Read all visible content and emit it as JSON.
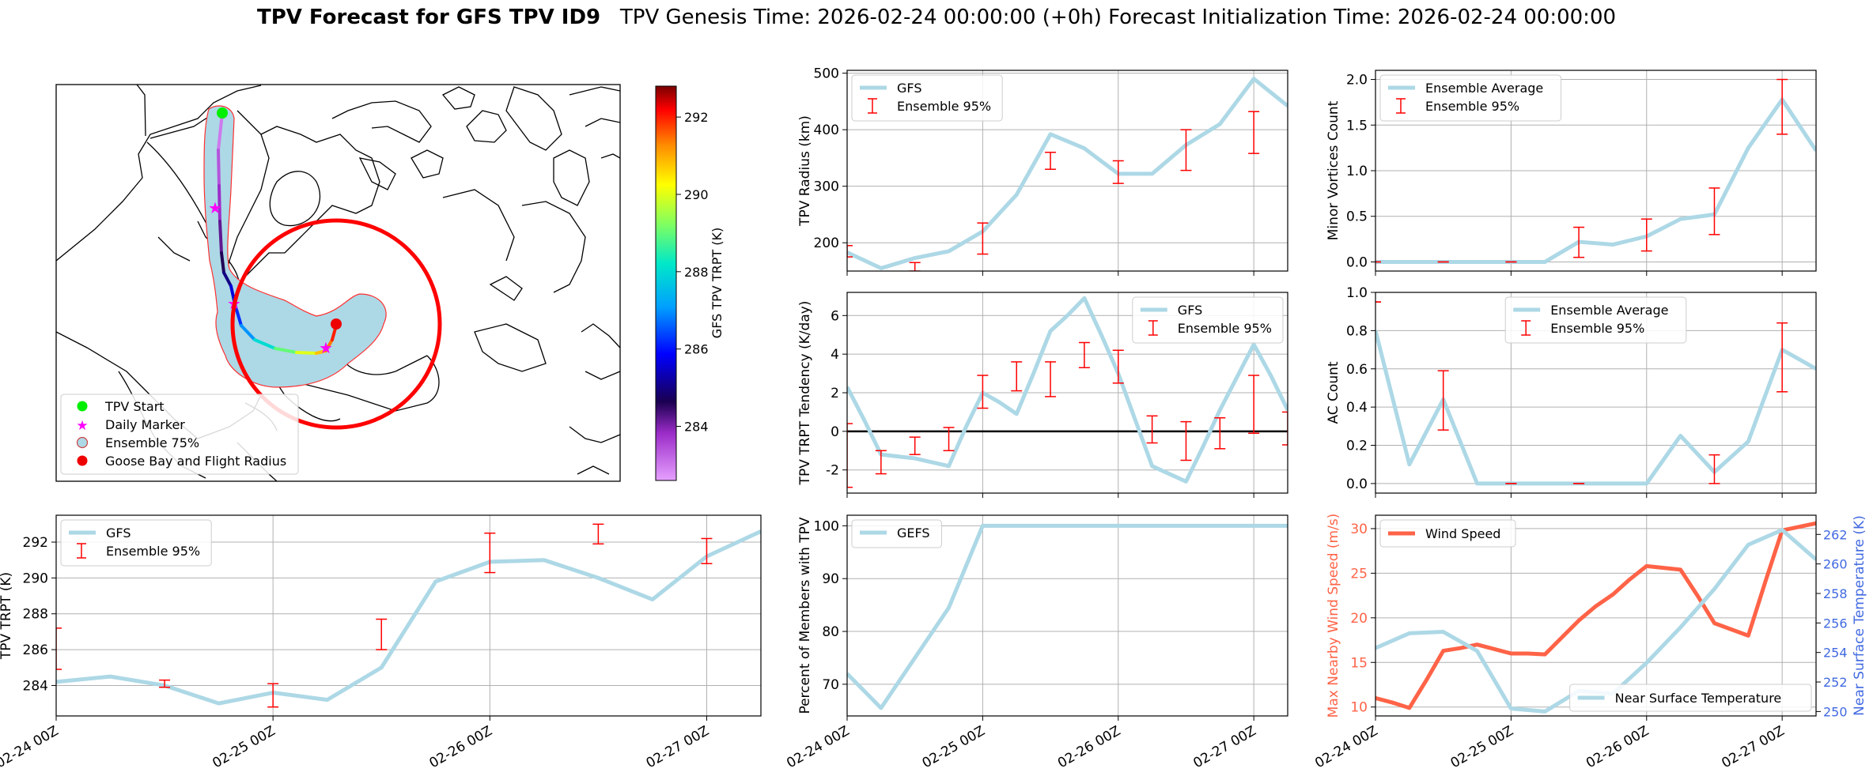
{
  "suptitle": {
    "bold": "TPV Forecast for GFS TPV ID9",
    "rest": "TPV Genesis Time: 2026-02-24 00:00:00 (+0h)   Forecast Initialization Time: 2026-02-24 00:00:00"
  },
  "colors": {
    "light_blue": "#add8e6",
    "error_red": "#ff0000",
    "wind": "#ff6347",
    "temp_axis": "#4169e1",
    "land": "#ffffff",
    "coast": "#000000"
  },
  "map": {
    "legend": [
      {
        "label": "TPV Start",
        "marker": "circle",
        "color": "#00ee00"
      },
      {
        "label": "Daily Marker",
        "marker": "star",
        "color": "#ff00ff"
      },
      {
        "label": "Ensemble 75%",
        "marker": "circle",
        "color": "#add8e6"
      },
      {
        "label": "Goose Bay and Flight Radius",
        "marker": "circle",
        "color": "#ff0000"
      }
    ],
    "colorbar": {
      "label": "GFS TPV TRPT (K)",
      "ticks": [
        284,
        286,
        288,
        290,
        292
      ],
      "vmin": 282.6,
      "vmax": 292.8
    },
    "track_trpt": [
      283.0,
      283.4,
      283.8,
      284.2,
      284.6,
      285.0,
      285.6,
      286.2,
      287.0,
      288.0,
      289.0,
      290.0,
      290.8,
      291.4,
      292.0,
      292.4
    ]
  },
  "time_axis": {
    "tick_labels": [
      "02-24 00Z",
      "02-25 00Z",
      "02-26 00Z",
      "02-27 00Z"
    ],
    "tick_positions": [
      0,
      24,
      48,
      72
    ],
    "xlim": [
      0,
      78
    ]
  },
  "chart_data": [
    {
      "id": "radius",
      "type": "line",
      "ylabel": "TPV Radius (km)",
      "ylim": [
        150,
        505
      ],
      "yticks": [
        200,
        300,
        400,
        500
      ],
      "series": [
        {
          "name": "GFS",
          "x": [
            0,
            6,
            12,
            18,
            24,
            30,
            36,
            42,
            48,
            54,
            60,
            66,
            72,
            78
          ],
          "values": [
            183,
            155,
            173,
            185,
            220,
            285,
            392,
            367,
            322,
            322,
            373,
            410,
            490,
            442
          ]
        },
        {
          "name": "Ensemble 95%",
          "type": "errorbar",
          "x": [
            0,
            12,
            24,
            36,
            48,
            60,
            72
          ],
          "low": [
            175,
            150,
            180,
            330,
            305,
            328,
            358
          ],
          "high": [
            195,
            165,
            235,
            360,
            345,
            400,
            432
          ]
        }
      ],
      "legend": [
        "GFS",
        "Ensemble 95%"
      ]
    },
    {
      "id": "minor",
      "type": "line",
      "ylabel": "Minor Vortices Count",
      "ylim": [
        -0.1,
        2.1
      ],
      "yticks": [
        0.0,
        0.5,
        1.0,
        1.5,
        2.0
      ],
      "series": [
        {
          "name": "Ensemble Average",
          "x": [
            0,
            6,
            12,
            18,
            24,
            30,
            36,
            42,
            48,
            54,
            60,
            66,
            72,
            78
          ],
          "values": [
            0,
            0,
            0,
            0,
            0,
            0,
            0.22,
            0.19,
            0.28,
            0.47,
            0.52,
            1.25,
            1.78,
            1.22
          ]
        },
        {
          "name": "Ensemble 95%",
          "type": "errorbar",
          "x": [
            0,
            12,
            24,
            36,
            48,
            60,
            72
          ],
          "low": [
            0,
            0,
            0,
            0.05,
            0.12,
            0.3,
            1.4
          ],
          "high": [
            0,
            0,
            0,
            0.38,
            0.47,
            0.81,
            2.0
          ]
        }
      ],
      "legend": [
        "Ensemble Average",
        "Ensemble 95%"
      ]
    },
    {
      "id": "tendency",
      "type": "line",
      "ylabel": "TPV TRPT Tendency (K/day)",
      "ylim": [
        -3.2,
        7.2
      ],
      "yticks": [
        -2,
        0,
        2,
        4,
        6
      ],
      "zero_line": true,
      "series": [
        {
          "name": "GFS",
          "x": [
            0,
            3,
            6,
            9,
            12,
            15,
            18,
            21,
            24,
            27,
            30,
            33,
            36,
            39,
            42,
            45,
            48,
            51,
            54,
            57,
            60,
            63,
            66,
            69,
            72,
            75,
            78
          ],
          "values": [
            2.3,
            0.6,
            -1.2,
            -1.3,
            -1.4,
            -1.6,
            -1.8,
            0.2,
            2.0,
            1.5,
            0.9,
            3.0,
            5.2,
            6.0,
            6.9,
            5.0,
            3.0,
            0.6,
            -1.8,
            -2.2,
            -2.6,
            -0.8,
            1.1,
            2.8,
            4.5,
            2.9,
            1.1
          ]
        },
        {
          "name": "Ensemble 95%",
          "type": "errorbar",
          "x": [
            0,
            6,
            12,
            18,
            24,
            30,
            36,
            42,
            48,
            54,
            60,
            66,
            72,
            78
          ],
          "low": [
            -2.9,
            -2.2,
            -1.2,
            -1.0,
            1.2,
            2.1,
            1.8,
            3.3,
            2.5,
            -0.6,
            -1.5,
            -0.9,
            -0.1,
            -0.7
          ],
          "high": [
            0.4,
            -1.0,
            -0.3,
            0.2,
            2.9,
            3.6,
            3.6,
            4.6,
            4.2,
            0.8,
            0.5,
            0.7,
            2.9,
            1.0
          ]
        }
      ],
      "legend": [
        "GFS",
        "Ensemble 95%"
      ]
    },
    {
      "id": "ac",
      "type": "line",
      "ylabel": "AC Count",
      "ylim": [
        -0.05,
        1.0
      ],
      "yticks": [
        0.0,
        0.2,
        0.4,
        0.6,
        0.8,
        1.0
      ],
      "series": [
        {
          "name": "Ensemble Average",
          "x": [
            0,
            6,
            12,
            18,
            24,
            30,
            36,
            42,
            48,
            54,
            60,
            66,
            72,
            78
          ],
          "values": [
            0.8,
            0.1,
            0.44,
            0,
            0,
            0,
            0,
            0,
            0,
            0.25,
            0.06,
            0.22,
            0.7,
            0.6
          ]
        },
        {
          "name": "Ensemble 95%",
          "type": "errorbar",
          "x": [
            0,
            12,
            24,
            36,
            60,
            72
          ],
          "low": [
            0.95,
            0.28,
            0,
            0,
            0,
            0.48
          ],
          "high": [
            0.95,
            0.59,
            0,
            0,
            0.15,
            0.84
          ]
        }
      ],
      "legend": [
        "Ensemble Average",
        "Ensemble 95%"
      ]
    },
    {
      "id": "trpt",
      "type": "line",
      "ylabel": "TPV TRPT (K)",
      "ylim": [
        282.3,
        293.5
      ],
      "yticks": [
        284,
        286,
        288,
        290,
        292
      ],
      "series": [
        {
          "name": "GFS",
          "x": [
            0,
            6,
            12,
            18,
            24,
            30,
            36,
            42,
            48,
            54,
            60,
            66,
            72,
            78
          ],
          "values": [
            284.2,
            284.5,
            284.0,
            283.0,
            283.6,
            283.2,
            285.0,
            289.8,
            290.9,
            291.0,
            290.0,
            288.8,
            291.2,
            292.6
          ]
        },
        {
          "name": "Ensemble 95%",
          "type": "errorbar",
          "x": [
            0,
            12,
            24,
            36,
            48,
            60,
            72
          ],
          "low": [
            284.9,
            283.9,
            282.8,
            286.0,
            290.3,
            291.9,
            290.8
          ],
          "high": [
            287.2,
            284.3,
            284.1,
            287.7,
            292.5,
            293.0,
            292.2
          ]
        }
      ],
      "legend": [
        "GFS",
        "Ensemble 95%"
      ]
    },
    {
      "id": "members",
      "type": "line",
      "ylabel": "Percent of Members with TPV",
      "ylim": [
        64,
        102
      ],
      "yticks": [
        70,
        80,
        90,
        100
      ],
      "series": [
        {
          "name": "GEFS",
          "x": [
            0,
            6,
            12,
            18,
            24,
            30,
            36,
            42,
            48,
            54,
            60,
            66,
            72,
            78
          ],
          "values": [
            72,
            65.5,
            75,
            84.5,
            100,
            100,
            100,
            100,
            100,
            100,
            100,
            100,
            100,
            100
          ]
        }
      ],
      "legend": [
        "GEFS"
      ]
    },
    {
      "id": "wind_temp",
      "type": "line",
      "ylabel": "Max Nearby Wind Speed (m/s)",
      "ylabel_right": "Near Surface Temperature (K)",
      "ylim": [
        9,
        31.5
      ],
      "yticks": [
        10,
        15,
        20,
        25,
        30
      ],
      "ylim_right": [
        249.7,
        263.3
      ],
      "yticks_right": [
        250,
        252,
        254,
        256,
        258,
        260,
        262
      ],
      "series": [
        {
          "name": "Wind Speed",
          "axis": "left",
          "x": [
            0,
            3,
            6,
            9,
            12,
            15,
            18,
            21,
            24,
            27,
            30,
            33,
            36,
            39,
            42,
            45,
            48,
            51,
            54,
            57,
            60,
            63,
            66,
            69,
            72,
            75,
            78
          ],
          "values": [
            11,
            10.5,
            9.9,
            13,
            16.3,
            16.6,
            17,
            16.5,
            16,
            16,
            15.9,
            17.8,
            19.7,
            21.3,
            22.6,
            24.3,
            25.8,
            25.6,
            25.4,
            22.5,
            19.4,
            18.7,
            18,
            24,
            29.8,
            30.2,
            30.6
          ]
        },
        {
          "name": "Near Surface Temperature",
          "axis": "right",
          "x": [
            0,
            6,
            12,
            18,
            24,
            30,
            36,
            42,
            48,
            54,
            60,
            66,
            72,
            78
          ],
          "values": [
            254.3,
            255.3,
            255.4,
            254.1,
            250.2,
            250.0,
            251.4,
            251.2,
            253.3,
            255.7,
            258.3,
            261.3,
            262.3,
            260.3
          ]
        }
      ],
      "legend": [
        "Wind Speed",
        "Near Surface Temperature"
      ]
    }
  ]
}
